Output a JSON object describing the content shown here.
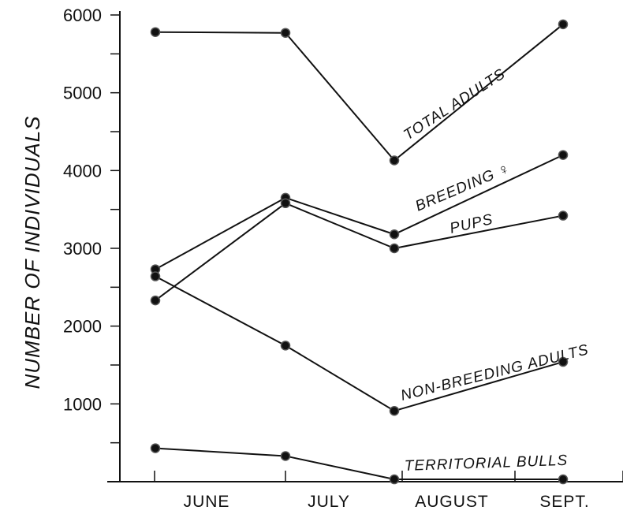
{
  "chart_data": {
    "type": "line",
    "categories": [
      "JUNE",
      "JULY",
      "AUGUST",
      "SEPT."
    ],
    "xlabel": "",
    "ylabel": "NUMBER OF INDIVIDUALS",
    "ylim": [
      0,
      6000
    ],
    "yticks": [
      1000,
      2000,
      3000,
      4000,
      5000,
      6000
    ],
    "grid": false,
    "legend": "none",
    "series": [
      {
        "name": "TOTAL ADULTS",
        "values": [
          5780,
          5770,
          4130,
          5880
        ]
      },
      {
        "name": "BREEDING ♀",
        "values": [
          2730,
          3650,
          3180,
          4200
        ]
      },
      {
        "name": "PUPS",
        "values": [
          2330,
          3580,
          3000,
          3420
        ]
      },
      {
        "name": "NON-BREEDING ADULTS",
        "values": [
          2640,
          1750,
          910,
          1540
        ]
      },
      {
        "name": "TERRITORIAL BULLS",
        "values": [
          430,
          330,
          30,
          30
        ]
      }
    ]
  }
}
